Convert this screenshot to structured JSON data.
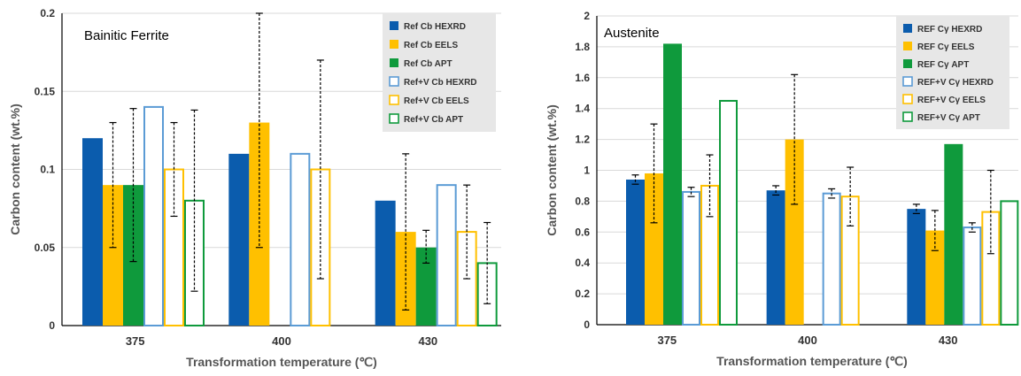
{
  "chart_data": [
    {
      "type": "bar",
      "title": "Bainitic Ferrite",
      "xlabel": "Transformation temperature (℃)",
      "ylabel": "Carbon content (wt.%)",
      "ylim": [
        0,
        0.2
      ],
      "yticks": [
        "0",
        "0.05",
        "0.1",
        "0.15",
        "0.2"
      ],
      "categories": [
        "375",
        "400",
        "430"
      ],
      "legend_position": "top-right",
      "series": [
        {
          "name": "Ref Cb HEXRD",
          "style": "filled",
          "color": "#0B5CAD",
          "values": [
            0.12,
            0.11,
            0.08
          ],
          "err_low": [
            null,
            null,
            null
          ],
          "err_high": [
            null,
            null,
            null
          ]
        },
        {
          "name": "Ref Cb EELS",
          "style": "filled",
          "color": "#FFC000",
          "values": [
            0.09,
            0.13,
            0.06
          ],
          "err_low": [
            0.05,
            0.05,
            0.01
          ],
          "err_high": [
            0.13,
            0.2,
            0.11
          ]
        },
        {
          "name": "Ref Cb APT",
          "style": "filled",
          "color": "#0F9A3C",
          "values": [
            0.09,
            null,
            0.05
          ],
          "err_low": [
            0.041,
            null,
            0.04
          ],
          "err_high": [
            0.139,
            null,
            0.061
          ]
        },
        {
          "name": "Ref+V Cb HEXRD",
          "style": "outline",
          "color": "#5B9BD5",
          "values": [
            0.14,
            0.11,
            0.09
          ],
          "err_low": [
            null,
            null,
            null
          ],
          "err_high": [
            null,
            null,
            null
          ]
        },
        {
          "name": "Ref+V Cb EELS",
          "style": "outline",
          "color": "#FFC000",
          "values": [
            0.1,
            0.1,
            0.06
          ],
          "err_low": [
            0.07,
            0.03,
            0.03
          ],
          "err_high": [
            0.13,
            0.17,
            0.09
          ]
        },
        {
          "name": "Ref+V Cb APT",
          "style": "outline",
          "color": "#0F9A3C",
          "values": [
            0.08,
            null,
            0.04
          ],
          "err_low": [
            0.022,
            null,
            0.014
          ],
          "err_high": [
            0.138,
            null,
            0.066
          ]
        }
      ]
    },
    {
      "type": "bar",
      "title": "Austenite",
      "xlabel": "Transformation temperature (℃)",
      "ylabel": "Carbon content (wt.%)",
      "ylim": [
        0,
        2
      ],
      "yticks": [
        "0",
        "0.2",
        "0.4",
        "0.6",
        "0.8",
        "1",
        "1.2",
        "1.4",
        "1.6",
        "1.8",
        "2"
      ],
      "categories": [
        "375",
        "400",
        "430"
      ],
      "legend_position": "top-right",
      "series": [
        {
          "name": "REF Cγ HEXRD",
          "style": "filled",
          "color": "#0B5CAD",
          "values": [
            0.94,
            0.87,
            0.75
          ],
          "err_low": [
            0.91,
            0.84,
            0.72
          ],
          "err_high": [
            0.97,
            0.9,
            0.78
          ]
        },
        {
          "name": "REF Cγ EELS",
          "style": "filled",
          "color": "#FFC000",
          "values": [
            0.98,
            1.2,
            0.61
          ],
          "err_low": [
            0.66,
            0.78,
            0.48
          ],
          "err_high": [
            1.3,
            1.62,
            0.74
          ]
        },
        {
          "name": "REF Cγ APT",
          "style": "filled",
          "color": "#0F9A3C",
          "values": [
            1.82,
            null,
            1.17
          ],
          "err_low": [
            null,
            null,
            null
          ],
          "err_high": [
            null,
            null,
            null
          ]
        },
        {
          "name": "REF+V Cγ HEXRD",
          "style": "outline",
          "color": "#5B9BD5",
          "values": [
            0.86,
            0.85,
            0.63
          ],
          "err_low": [
            0.83,
            0.82,
            0.6
          ],
          "err_high": [
            0.89,
            0.88,
            0.66
          ]
        },
        {
          "name": "REF+V Cγ EELS",
          "style": "outline",
          "color": "#FFC000",
          "values": [
            0.9,
            0.83,
            0.73
          ],
          "err_low": [
            0.7,
            0.64,
            0.46
          ],
          "err_high": [
            1.1,
            1.02,
            1.0
          ]
        },
        {
          "name": "REF+V Cγ APT",
          "style": "outline",
          "color": "#0F9A3C",
          "values": [
            1.45,
            null,
            0.8
          ],
          "err_low": [
            null,
            null,
            null
          ],
          "err_high": [
            null,
            null,
            null
          ]
        }
      ]
    }
  ]
}
